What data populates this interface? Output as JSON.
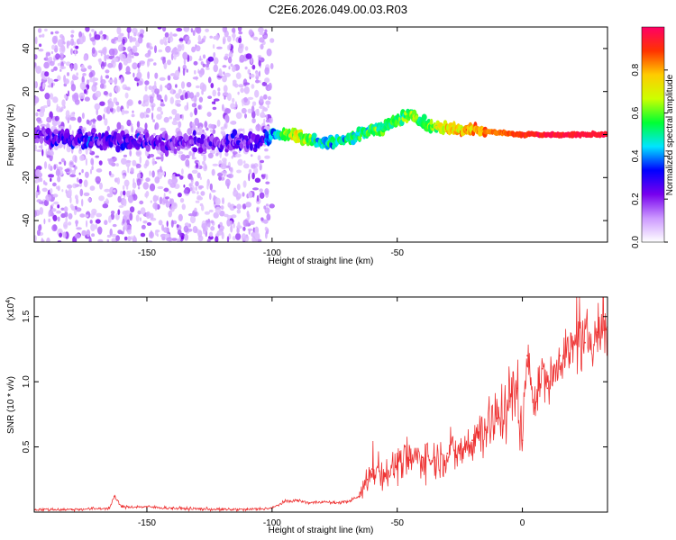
{
  "title": "C2E6.2026.049.00.03.R03",
  "chart_data": [
    {
      "type": "heatmap",
      "title": "C2E6.2026.049.00.03.R03",
      "xlabel": "Height of straight line (km)",
      "ylabel": "Frequency (Hz)",
      "xlim": [
        -195,
        34
      ],
      "ylim": [
        -50,
        50
      ],
      "x_ticks": [
        -150,
        -100,
        -50
      ],
      "x_tick_labels": [
        "-150",
        "-100",
        "-50"
      ],
      "y_ticks": [
        -40,
        -20,
        0,
        20,
        40
      ],
      "y_tick_labels": [
        "-40",
        "-20",
        "0",
        "20",
        "40"
      ],
      "colorbar": {
        "label": "Normalized spectral amplitude",
        "range": [
          0.0,
          1.0
        ],
        "ticks": [
          0.0,
          0.2,
          0.4,
          0.6,
          0.8
        ],
        "tick_labels": [
          "0.0",
          "0.2",
          "0.4",
          "0.6",
          "0.8"
        ],
        "colormap": [
          "#ffffff",
          "#cc99ff",
          "#7700ee",
          "#0000ff",
          "#00e5ff",
          "#00ff33",
          "#ccff00",
          "#ffcc00",
          "#ff3300",
          "#ff0066"
        ]
      },
      "ridge": {
        "x": [
          -195,
          -180,
          -160,
          -140,
          -120,
          -105,
          -100,
          -90,
          -80,
          -70,
          -60,
          -50,
          -45,
          -40,
          -30,
          -20,
          -10,
          0,
          10,
          20,
          33
        ],
        "frequency": [
          0,
          -2,
          -3,
          -4,
          -4,
          -3,
          0,
          0,
          -4,
          -2,
          2,
          6,
          10,
          5,
          3,
          2,
          1,
          0,
          0,
          0,
          0
        ],
        "amplitude": [
          0.2,
          0.25,
          0.25,
          0.2,
          0.2,
          0.25,
          0.4,
          0.7,
          0.45,
          0.5,
          0.55,
          0.5,
          0.6,
          0.55,
          0.7,
          0.8,
          0.85,
          0.9,
          0.95,
          0.95,
          0.95
        ]
      },
      "noise_region_x": [
        -195,
        -100
      ]
    },
    {
      "type": "line",
      "xlabel": "Height of straight line (km)",
      "ylabel": "SNR (10 * v/v)",
      "y_multiplier": "(x10",
      "y_multiplier_exp": "4",
      "y_multiplier_close": ")",
      "xlim": [
        -195,
        34
      ],
      "ylim": [
        0,
        1.65
      ],
      "x_ticks": [
        -150,
        -100,
        -50,
        0
      ],
      "x_tick_labels": [
        "-150",
        "-100",
        "-50",
        "0"
      ],
      "y_ticks": [
        0.5,
        1.0,
        1.5
      ],
      "y_tick_labels": [
        "0.5",
        "1.0",
        "1.5"
      ],
      "series": [
        {
          "color": "#ee3333",
          "x": [
            -195,
            -180,
            -165,
            -163,
            -160,
            -150,
            -140,
            -120,
            -110,
            -100,
            -95,
            -90,
            -85,
            -80,
            -75,
            -70,
            -65,
            -62,
            -60,
            -55,
            -50,
            -45,
            -40,
            -35,
            -30,
            -25,
            -20,
            -15,
            -10,
            -5,
            -2,
            0,
            2,
            5,
            8,
            10,
            15,
            20,
            25,
            30,
            34
          ],
          "y": [
            0.02,
            0.02,
            0.03,
            0.12,
            0.04,
            0.04,
            0.03,
            0.02,
            0.02,
            0.03,
            0.08,
            0.09,
            0.07,
            0.08,
            0.07,
            0.08,
            0.12,
            0.25,
            0.33,
            0.3,
            0.36,
            0.4,
            0.42,
            0.4,
            0.45,
            0.45,
            0.55,
            0.65,
            0.72,
            0.85,
            0.95,
            0.55,
            1.2,
            0.8,
            1.1,
            0.95,
            1.2,
            1.25,
            1.3,
            1.38,
            1.42
          ]
        }
      ]
    }
  ]
}
